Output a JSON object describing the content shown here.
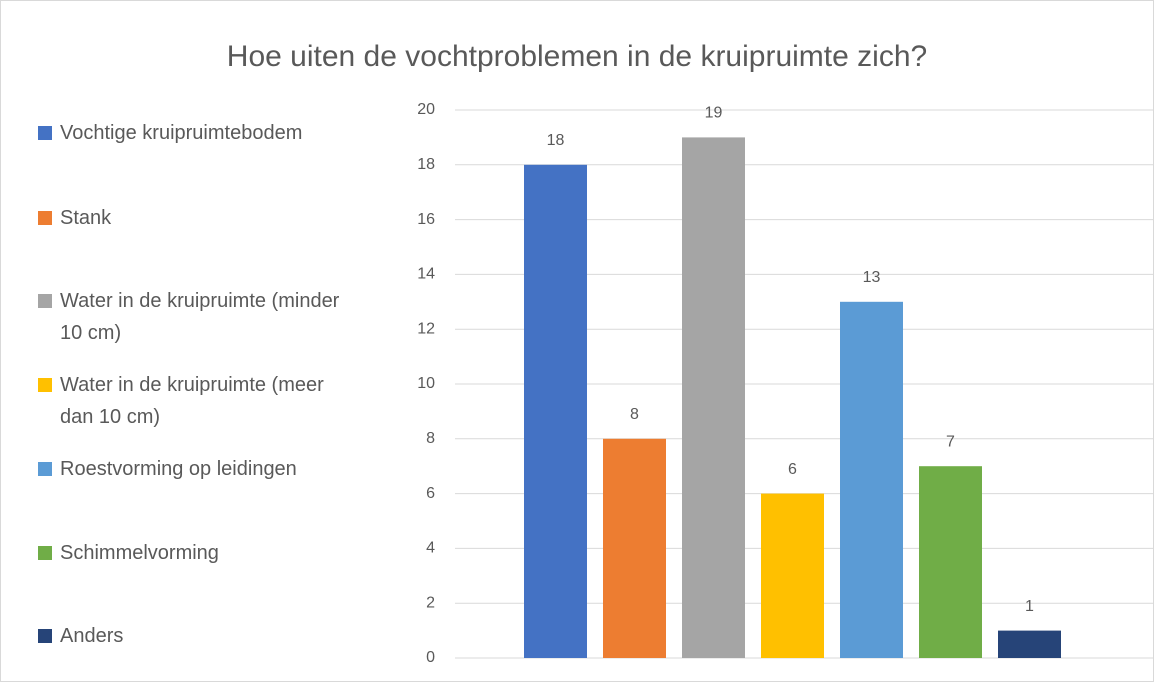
{
  "chart_data": {
    "type": "bar",
    "title": "Hoe uiten de vochtproblemen in de kruipruimte zich?",
    "series": [
      {
        "name": "Vochtige kruipruimtebodem",
        "color": "#4472c4",
        "values": [
          18
        ]
      },
      {
        "name": "Stank",
        "color": "#ed7d31",
        "values": [
          8
        ]
      },
      {
        "name": "Water in de kruipruimte (minder 10 cm)",
        "color": "#a5a5a5",
        "values": [
          19
        ]
      },
      {
        "name": "Water in de kruipruimte (meer dan 10 cm)",
        "color": "#ffc000",
        "values": [
          6
        ]
      },
      {
        "name": "Roestvorming op leidingen",
        "color": "#5b9bd5",
        "values": [
          13
        ]
      },
      {
        "name": "Schimmelvorming",
        "color": "#70ad47",
        "values": [
          7
        ]
      },
      {
        "name": "Anders",
        "color": "#264478",
        "values": [
          1
        ]
      }
    ],
    "ylim": [
      0,
      20
    ],
    "yticks": [
      0,
      2,
      4,
      6,
      8,
      10,
      12,
      14,
      16,
      18,
      20
    ],
    "grid": true,
    "legend": "left"
  }
}
